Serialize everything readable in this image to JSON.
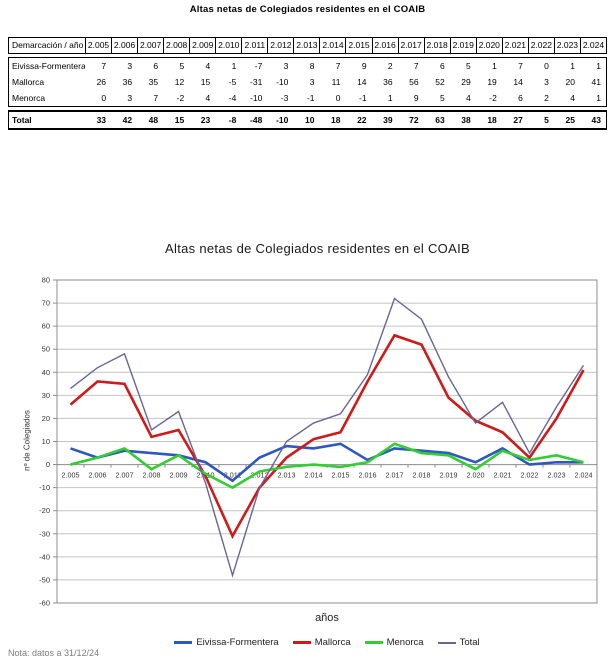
{
  "doc_title": "Altas netas de Colegiados residentes en el COAIB",
  "note": "Nota: datos a 31/12/24",
  "table": {
    "header_label": "Demarcación / año",
    "years": [
      "2.005",
      "2.006",
      "2.007",
      "2.008",
      "2.009",
      "2.010",
      "2.011",
      "2.012",
      "2.013",
      "2.014",
      "2.015",
      "2.016",
      "2.017",
      "2.018",
      "2.019",
      "2.020",
      "2.021",
      "2.022",
      "2.023",
      "2.024"
    ],
    "rows": [
      {
        "label": "Eivissa-Formentera",
        "values": [
          7,
          3,
          6,
          5,
          4,
          1,
          -7,
          3,
          8,
          7,
          9,
          2,
          7,
          6,
          5,
          1,
          7,
          0,
          1,
          1
        ]
      },
      {
        "label": "Mallorca",
        "values": [
          26,
          36,
          35,
          12,
          15,
          -5,
          -31,
          -10,
          3,
          11,
          14,
          36,
          56,
          52,
          29,
          19,
          14,
          3,
          20,
          41
        ]
      },
      {
        "label": "Menorca",
        "values": [
          0,
          3,
          7,
          -2,
          4,
          -4,
          -10,
          -3,
          -1,
          0,
          -1,
          1,
          9,
          5,
          4,
          -2,
          6,
          2,
          4,
          1
        ]
      }
    ],
    "total": {
      "label": "Total",
      "values": [
        33,
        42,
        48,
        15,
        23,
        -8,
        -48,
        -10,
        10,
        18,
        22,
        39,
        72,
        63,
        38,
        18,
        27,
        5,
        25,
        43
      ]
    }
  },
  "chart_data": {
    "type": "line",
    "title": "Altas netas de Colegiados residentes en el COAIB",
    "xlabel": "años",
    "ylabel": "nº de Colegiados",
    "ylim": [
      -60,
      80
    ],
    "ytick_step": 10,
    "grid": true,
    "legend_position": "bottom",
    "colors": {
      "gridline": "#c4c4c4",
      "axis": "#8c8c8c",
      "tick_text": "#333333"
    },
    "categories": [
      "2.005",
      "2.006",
      "2.007",
      "2.008",
      "2.009",
      "2.010",
      "2.011",
      "2.012",
      "2.013",
      "2.014",
      "2.015",
      "2.016",
      "2.017",
      "2.018",
      "2.019",
      "2.020",
      "2.021",
      "2.022",
      "2.023",
      "2.024"
    ],
    "series": [
      {
        "name": "Eivissa-Formentera",
        "color": "#2E58C0",
        "width": 2.6,
        "values": [
          7,
          3,
          6,
          5,
          4,
          1,
          -7,
          3,
          8,
          7,
          9,
          2,
          7,
          6,
          5,
          1,
          7,
          0,
          1,
          1
        ]
      },
      {
        "name": "Mallorca",
        "color": "#D01A1A",
        "width": 2.6,
        "values": [
          26,
          36,
          35,
          12,
          15,
          -5,
          -31,
          -10,
          3,
          11,
          14,
          36,
          56,
          52,
          29,
          19,
          14,
          3,
          20,
          41
        ]
      },
      {
        "name": "Menorca",
        "color": "#33CC33",
        "width": 2.6,
        "values": [
          0,
          3,
          7,
          -2,
          4,
          -4,
          -10,
          -3,
          -1,
          0,
          -1,
          1,
          9,
          5,
          4,
          -2,
          6,
          2,
          4,
          1
        ]
      },
      {
        "name": "Total",
        "color": "#666699",
        "width": 1.4,
        "values": [
          33,
          42,
          48,
          15,
          23,
          -8,
          -48,
          -10,
          10,
          18,
          22,
          39,
          72,
          63,
          38,
          18,
          27,
          5,
          25,
          43
        ]
      }
    ]
  }
}
